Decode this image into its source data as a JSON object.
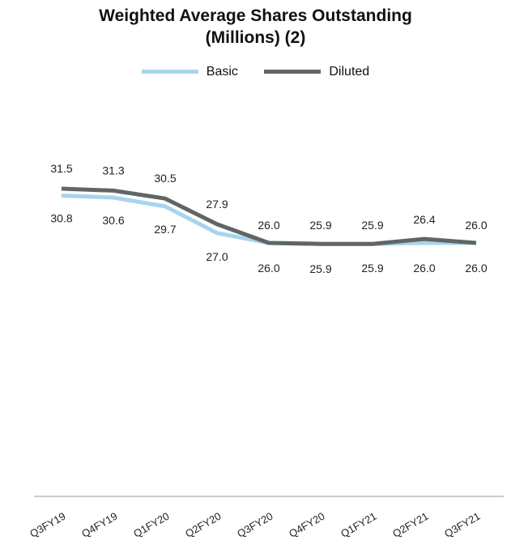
{
  "chart_data": {
    "type": "line",
    "title_line1": "Weighted Average Shares Outstanding",
    "title_line2": "(Millions) (2)",
    "categories": [
      "Q3FY19",
      "Q4FY19",
      "Q1FY20",
      "Q2FY20",
      "Q3FY20",
      "Q4FY20",
      "Q1FY21",
      "Q2FY21",
      "Q3FY21"
    ],
    "series": [
      {
        "name": "Basic",
        "color": "#a8d4ec",
        "values": [
          30.8,
          30.6,
          29.7,
          27.0,
          26.0,
          25.9,
          25.9,
          26.0,
          26.0
        ]
      },
      {
        "name": "Diluted",
        "color": "#606663",
        "values": [
          31.5,
          31.3,
          30.5,
          27.9,
          26.0,
          25.9,
          25.9,
          26.4,
          26.0
        ]
      }
    ],
    "legend_position": "top-center",
    "grid": false,
    "xlabel": "",
    "ylabel": ""
  }
}
